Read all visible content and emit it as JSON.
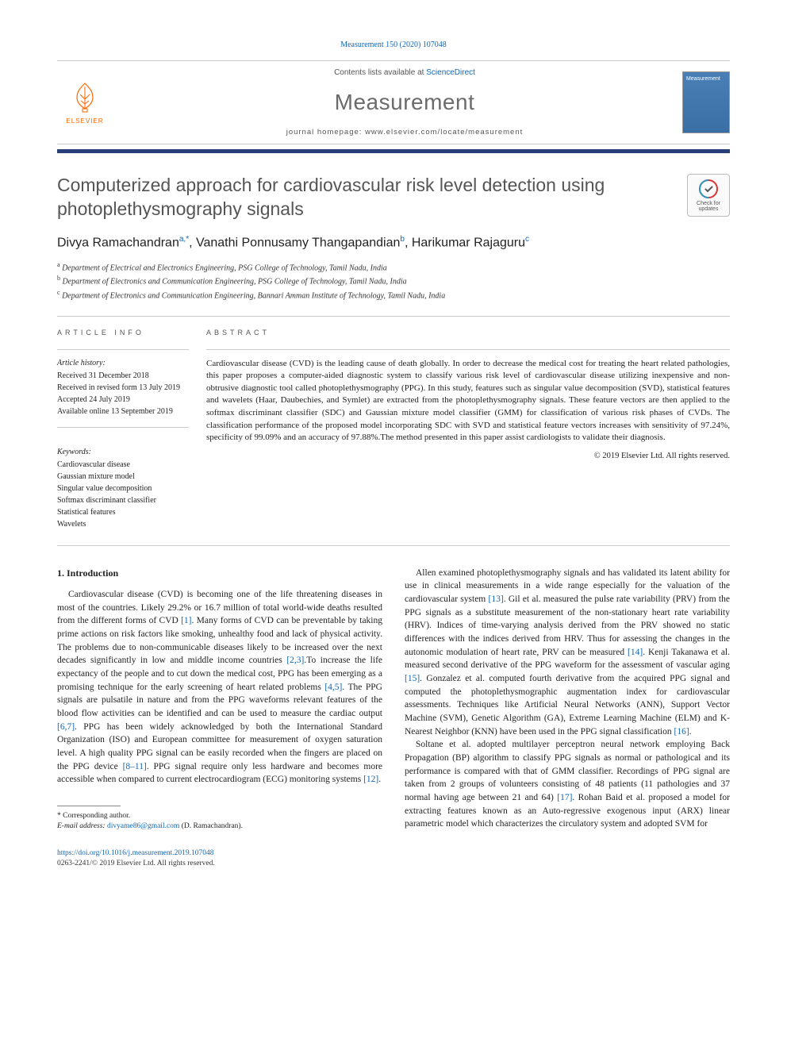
{
  "citation": "Measurement 150 (2020) 107048",
  "header": {
    "contents_prefix": "Contents lists available at ",
    "contents_link": "ScienceDirect",
    "journal": "Measurement",
    "homepage_prefix": "journal homepage: ",
    "homepage": "www.elsevier.com/locate/measurement",
    "publisher": "ELSEVIER",
    "cover_label": "Measurement"
  },
  "colors": {
    "accent_bar": "#2a3f7a",
    "link": "#1266b3",
    "elsevier_orange": "#ff6600",
    "title_gray": "#555555",
    "cover_bg": "#4a7fb5"
  },
  "title": "Computerized approach for cardiovascular risk level detection using photoplethysmography signals",
  "updates_badge": "Check for updates",
  "authors_html": "Divya Ramachandran<sup>a,*</sup>, Vanathi Ponnusamy Thangapandian<sup>b</sup>, Harikumar Rajaguru<sup>c</sup>",
  "affiliations": [
    {
      "sup": "a",
      "text": "Department of Electrical and Electronics Engineering, PSG College of Technology, Tamil Nadu, India"
    },
    {
      "sup": "b",
      "text": "Department of Electronics and Communication Engineering, PSG College of Technology, Tamil Nadu, India"
    },
    {
      "sup": "c",
      "text": "Department of Electronics and Communication Engineering, Bannari Amman Institute of Technology, Tamil Nadu, India"
    }
  ],
  "article_info": {
    "heading": "ARTICLE INFO",
    "history_label": "Article history:",
    "history": [
      "Received 31 December 2018",
      "Received in revised form 13 July 2019",
      "Accepted 24 July 2019",
      "Available online 13 September 2019"
    ],
    "keywords_label": "Keywords:",
    "keywords": [
      "Cardiovascular disease",
      "Gaussian mixture model",
      "Singular value decomposition",
      "Softmax discriminant classifier",
      "Statistical features",
      "Wavelets"
    ]
  },
  "abstract": {
    "heading": "ABSTRACT",
    "text": "Cardiovascular disease (CVD) is the leading cause of death globally. In order to decrease the medical cost for treating the heart related pathologies, this paper proposes a computer-aided diagnostic system to classify various risk level of cardiovascular disease utilizing inexpensive and non-obtrusive diagnostic tool called photoplethysmography (PPG). In this study, features such as singular value decomposition (SVD), statistical features and wavelets (Haar, Daubechies, and Symlet) are extracted from the photoplethysmography signals. These feature vectors are then applied to the softmax discriminant classifier (SDC) and Gaussian mixture model classifier (GMM) for classification of various risk phases of CVDs. The classification performance of the proposed model incorporating SDC with SVD and statistical feature vectors increases with sensitivity of 97.24%, specificity of 99.09% and an accuracy of 97.88%.The method presented in this paper assist cardiologists to validate their diagnosis.",
    "copyright": "© 2019 Elsevier Ltd. All rights reserved."
  },
  "section1": {
    "heading": "1. Introduction",
    "left_para": "Cardiovascular disease (CVD) is becoming one of the life threatening diseases in most of the countries. Likely 29.2% or 16.7 million of total world-wide deaths resulted from the different forms of CVD [1]. Many forms of CVD can be preventable by taking prime actions on risk factors like smoking, unhealthy food and lack of physical activity. The problems due to non-communicable diseases likely to be increased over the next decades significantly in low and middle income countries [2,3].To increase the life expectancy of the people and to cut down the medical cost, PPG has been emerging as a promising technique for the early screening of heart related problems [4,5]. The PPG signals are pulsatile in nature and from the PPG waveforms relevant features of the blood flow activities can be identified and can be used to measure the cardiac output [6,7]. PPG has been widely acknowledged by both the International Standard Organization (ISO) and European committee for measurement of oxygen saturation level. A high quality PPG signal can be easily recorded when the fingers are placed on the PPG device [8–11]. PPG signal require only less hardware and becomes more accessible when compared to current electrocardiogram (ECG) monitoring systems [12].",
    "right_para1": "Allen examined photoplethysmography signals and has validated its latent ability for use in clinical measurements in a wide range especially for the valuation of the cardiovascular system [13]. Gil et al. measured the pulse rate variability (PRV) from the PPG signals as a substitute measurement of the non-stationary heart rate variability (HRV). Indices of time-varying analysis derived from the PRV showed no static differences with the indices derived from HRV. Thus for assessing the changes in the autonomic modulation of heart rate, PRV can be measured [14]. Kenji Takanawa et al. measured second derivative of the PPG waveform for the assessment of vascular aging [15]. Gonzalez et al. computed fourth derivative from the acquired PPG signal and computed the photoplethysmographic augmentation index for cardiovascular assessments. Techniques like Artificial Neural Networks (ANN), Support Vector Machine (SVM), Genetic Algorithm (GA), Extreme Learning Machine (ELM) and K-Nearest Neighbor (KNN) have been used in the PPG signal classification [16].",
    "right_para2": "Soltane et al. adopted multilayer perceptron neural network employing Back Propagation (BP) algorithm to classify PPG signals as normal or pathological and its performance is compared with that of GMM classifier. Recordings of PPG signal are taken from 2 groups of volunteers consisting of 48 patients (11 pathologies and 37 normal having age between 21 and 64) [17]. Rohan Baid et al. proposed a model for extracting features known as an Auto-regressive exogenous input (ARX) linear parametric model which characterizes the circulatory system and adopted SVM for"
  },
  "footnote": {
    "corr": "* Corresponding author.",
    "email_label": "E-mail address: ",
    "email": "divyame86@gmail.com",
    "email_suffix": " (D. Ramachandran)."
  },
  "doi": {
    "url": "https://doi.org/10.1016/j.measurement.2019.107048",
    "issn": "0263-2241/© 2019 Elsevier Ltd. All rights reserved."
  },
  "refs_in_text": [
    "[1]",
    "[2,3]",
    "[4,5]",
    "[6,7]",
    "[8–11]",
    "[12]",
    "[13]",
    "[14]",
    "[15]",
    "[16]",
    "[17]"
  ]
}
